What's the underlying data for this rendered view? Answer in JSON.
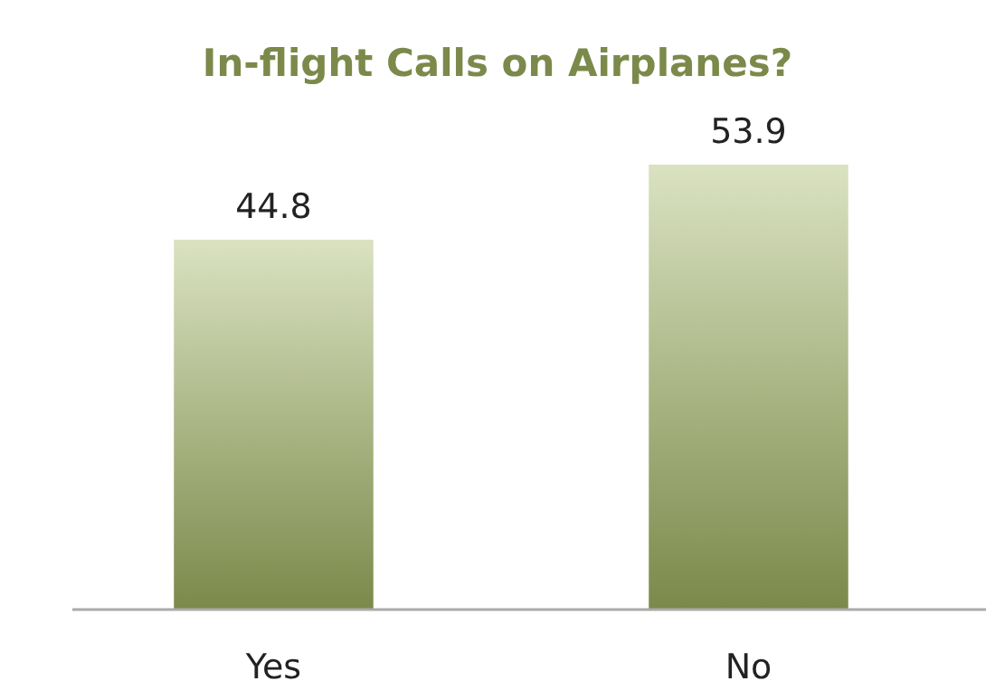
{
  "chart_data": {
    "type": "bar",
    "title": "In-flight Calls on Airplanes?",
    "categories": [
      "Yes",
      "No"
    ],
    "values": [
      44.8,
      53.9
    ],
    "color": "#a3b663",
    "data_labels": true
  }
}
